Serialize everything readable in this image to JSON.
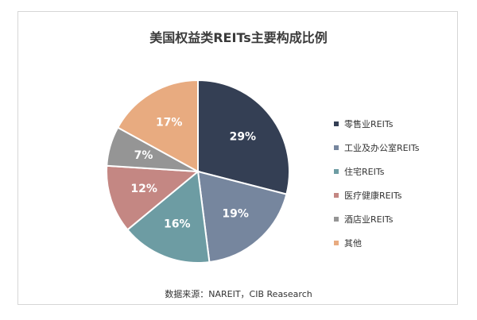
{
  "chart_data": {
    "type": "pie",
    "title": "美国权益类REITs主要构成比例",
    "slices": [
      {
        "label": "零售业REITs",
        "value": 29,
        "value_label": "29%",
        "color": "#343f54"
      },
      {
        "label": "工业及办公室REITs",
        "value": 19,
        "value_label": "19%",
        "color": "#76869e"
      },
      {
        "label": "住宅REITs",
        "value": 16,
        "value_label": "16%",
        "color": "#6d9ca3"
      },
      {
        "label": "医疗健康REITs",
        "value": 12,
        "value_label": "12%",
        "color": "#c48783"
      },
      {
        "label": "酒店业REITs",
        "value": 7,
        "value_label": "7%",
        "color": "#959595"
      },
      {
        "label": "其他",
        "value": 17,
        "value_label": "17%",
        "color": "#e8ab80"
      }
    ],
    "legend_position": "right"
  },
  "source": "数据来源：NAREIT，CIB Reasearch"
}
